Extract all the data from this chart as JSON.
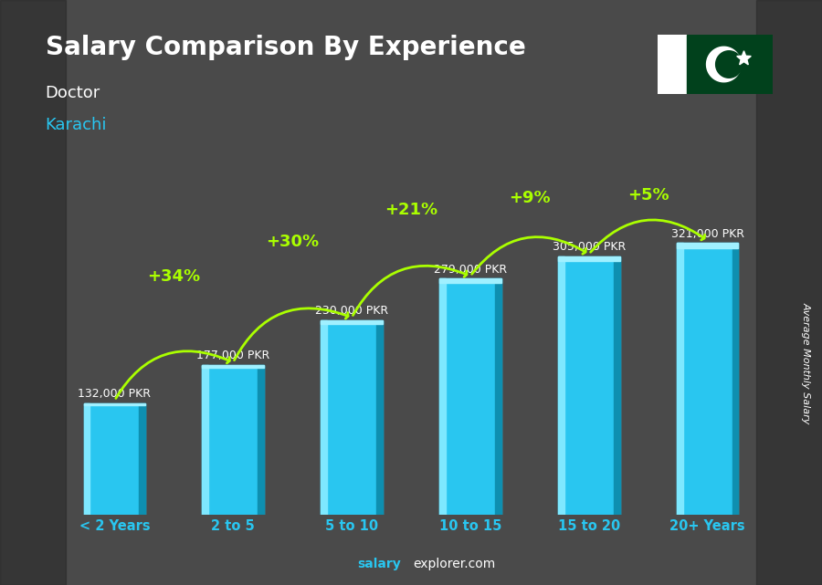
{
  "title": "Salary Comparison By Experience",
  "subtitle1": "Doctor",
  "subtitle2": "Karachi",
  "ylabel": "Average Monthly Salary",
  "categories": [
    "< 2 Years",
    "2 to 5",
    "5 to 10",
    "10 to 15",
    "15 to 20",
    "20+ Years"
  ],
  "values": [
    132000,
    177000,
    230000,
    279000,
    305000,
    321000
  ],
  "value_labels": [
    "132,000 PKR",
    "177,000 PKR",
    "230,000 PKR",
    "279,000 PKR",
    "305,000 PKR",
    "321,000 PKR"
  ],
  "pct_labels": [
    "+34%",
    "+30%",
    "+21%",
    "+9%",
    "+5%"
  ],
  "bar_color_face": "#29c6f0",
  "bar_highlight": "#7ee8ff",
  "bar_shadow": "#0e8fb0",
  "bar_top": "#a0f0ff",
  "background_color": "#4a4a4a",
  "title_color": "#ffffff",
  "subtitle1_color": "#ffffff",
  "subtitle2_color": "#29c6f0",
  "value_label_color": "#ffffff",
  "pct_label_color": "#aaff00",
  "xlabel_color": "#29c6f0",
  "ylabel_color": "#ffffff",
  "footer_salary_color": "#29c6f0",
  "footer_explorer_color": "#ffffff",
  "ylim": [
    0,
    380000
  ],
  "bar_width": 0.52
}
